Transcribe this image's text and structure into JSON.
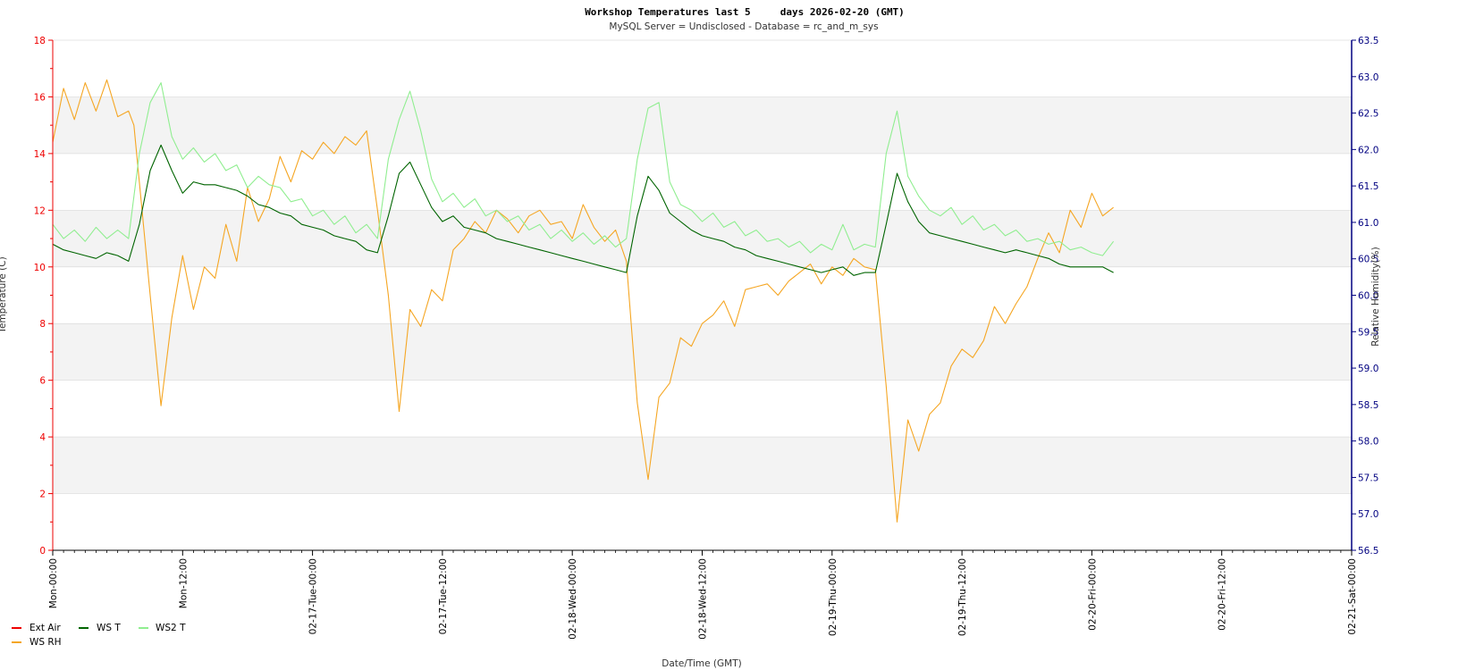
{
  "chart_data": {
    "type": "line",
    "title": "Workshop Temperatures last 5     days 2026-02-20 (GMT)",
    "subtitle": "MySQL Server = Undisclosed - Database = rc_and_m_sys",
    "xlabel": "Date/Time (GMT)",
    "ylabel_left": "Temperature (C)",
    "ylabel_right": "Relative Humidity(%)",
    "ylim_left": [
      0,
      18
    ],
    "ylim_right": [
      56.5,
      63.5
    ],
    "xlim_hours": [
      0,
      120
    ],
    "x_tick_hours": [
      0,
      12,
      24,
      36,
      48,
      60,
      72,
      84,
      96,
      108,
      120
    ],
    "x_tick_labels": [
      "Mon-00:00",
      "Mon-12:00",
      "02-17-Tue-00:00",
      "02-17-Tue-12:00",
      "02-18-Wed-00:00",
      "02-18-Wed-12:00",
      "02-19-Thu-00:00",
      "02-19-Thu-12:00",
      "02-20-Fri-00:00",
      "02-20-Fri-12:00",
      "02-21-Sat-00:00"
    ],
    "y_left_ticks": [
      0,
      2,
      4,
      6,
      8,
      10,
      12,
      14,
      16,
      18
    ],
    "y_right_ticks": [
      "56.5",
      "57.0",
      "57.5",
      "58.0",
      "58.5",
      "59.0",
      "59.5",
      "60.0",
      "60.5",
      "61.0",
      "61.5",
      "62.0",
      "62.5",
      "63.0",
      "63.5"
    ],
    "legend_position": "bottom-left",
    "colors": {
      "left_axis": "#ee0000",
      "right_axis": "#000080",
      "band": "#f3f3f3"
    },
    "series": [
      {
        "name": "Ext Air",
        "color": "#ee0000",
        "axis": "left",
        "x": [],
        "values": []
      },
      {
        "name": "WS RH",
        "color": "#f5a623",
        "axis": "left",
        "x": [
          0,
          1,
          2,
          3,
          4,
          5,
          6,
          7,
          7.5,
          9,
          10,
          11,
          12,
          13,
          14,
          15,
          16,
          17,
          18,
          19,
          20,
          21,
          22,
          23,
          24,
          25,
          26,
          27,
          28,
          29,
          30,
          31,
          32,
          33,
          34,
          35,
          36,
          37,
          38,
          39,
          40,
          41,
          42,
          43,
          44,
          45,
          46,
          47,
          48,
          49,
          50,
          51,
          52,
          53,
          54,
          55,
          56,
          57,
          58,
          59,
          60,
          61,
          62,
          63,
          64,
          65,
          66,
          67,
          68,
          69,
          70,
          71,
          72,
          73,
          74,
          75,
          76,
          77,
          78,
          79,
          80,
          81,
          82,
          83,
          84,
          85,
          86,
          87,
          88,
          89,
          90,
          91,
          92,
          93,
          94,
          95,
          96,
          97,
          98
        ],
        "values": [
          14.4,
          16.3,
          15.2,
          16.5,
          15.5,
          16.6,
          15.3,
          15.5,
          15.0,
          9.0,
          5.1,
          8.2,
          10.4,
          8.5,
          10.0,
          9.6,
          11.5,
          10.2,
          12.8,
          11.6,
          12.4,
          13.9,
          13.0,
          14.1,
          13.8,
          14.4,
          14.0,
          14.6,
          14.3,
          14.8,
          12.0,
          9.0,
          4.9,
          8.5,
          7.9,
          9.2,
          8.8,
          10.6,
          11.0,
          11.6,
          11.2,
          12.0,
          11.7,
          11.2,
          11.8,
          12.0,
          11.5,
          11.6,
          11.0,
          12.2,
          11.4,
          10.9,
          11.3,
          10.2,
          5.2,
          2.5,
          5.4,
          5.9,
          7.5,
          7.2,
          8.0,
          8.3,
          8.8,
          7.9,
          9.2,
          9.3,
          9.4,
          9.0,
          9.5,
          9.8,
          10.1,
          9.4,
          10.0,
          9.7,
          10.3,
          10.0,
          9.9,
          5.8,
          1.0,
          4.6,
          3.5,
          4.8,
          5.2,
          6.5,
          7.1,
          6.8,
          7.4,
          8.6,
          8.0,
          8.7,
          9.3,
          10.3,
          11.2,
          10.5,
          12.0,
          11.4,
          12.6,
          11.8,
          12.1
        ]
      },
      {
        "name": "WS T",
        "color": "#006400",
        "axis": "left",
        "x": [
          0,
          1,
          2,
          3,
          4,
          5,
          6,
          7,
          8,
          9,
          10,
          11,
          12,
          13,
          14,
          15,
          16,
          17,
          18,
          19,
          20,
          21,
          22,
          23,
          24,
          25,
          26,
          27,
          28,
          29,
          30,
          31,
          32,
          33,
          34,
          35,
          36,
          37,
          38,
          39,
          40,
          41,
          42,
          43,
          44,
          45,
          46,
          47,
          48,
          49,
          50,
          51,
          52,
          53,
          54,
          55,
          56,
          57,
          58,
          59,
          60,
          61,
          62,
          63,
          64,
          65,
          66,
          67,
          68,
          69,
          70,
          71,
          72,
          73,
          74,
          75,
          76,
          77,
          78,
          79,
          80,
          81,
          82,
          83,
          84,
          85,
          86,
          87,
          88,
          89,
          90,
          91,
          92,
          93,
          94,
          95,
          96,
          97,
          98
        ],
        "values": [
          10.8,
          10.6,
          10.5,
          10.4,
          10.3,
          10.5,
          10.4,
          10.2,
          11.5,
          13.4,
          14.3,
          13.4,
          12.6,
          13.0,
          12.9,
          12.9,
          12.8,
          12.7,
          12.5,
          12.2,
          12.1,
          11.9,
          11.8,
          11.5,
          11.4,
          11.3,
          11.1,
          11.0,
          10.9,
          10.6,
          10.5,
          11.8,
          13.3,
          13.7,
          12.9,
          12.1,
          11.6,
          11.8,
          11.4,
          11.3,
          11.2,
          11.0,
          10.9,
          10.8,
          10.7,
          10.6,
          10.5,
          10.4,
          10.3,
          10.2,
          10.1,
          10.0,
          9.9,
          9.8,
          11.8,
          13.2,
          12.7,
          11.9,
          11.6,
          11.3,
          11.1,
          11.0,
          10.9,
          10.7,
          10.6,
          10.4,
          10.3,
          10.2,
          10.1,
          10.0,
          9.9,
          9.8,
          9.9,
          10.0,
          9.7,
          9.8,
          9.8,
          11.5,
          13.3,
          12.3,
          11.6,
          11.2,
          11.1,
          11.0,
          10.9,
          10.8,
          10.7,
          10.6,
          10.5,
          10.6,
          10.5,
          10.4,
          10.3,
          10.1,
          10.0,
          10.0,
          10.0,
          10.0,
          9.8
        ]
      },
      {
        "name": "WS2 T",
        "color": "#90ee90",
        "axis": "left",
        "x": [
          0,
          1,
          2,
          3,
          4,
          5,
          6,
          7,
          8,
          9,
          10,
          11,
          12,
          13,
          14,
          15,
          16,
          17,
          18,
          19,
          20,
          21,
          22,
          23,
          24,
          25,
          26,
          27,
          28,
          29,
          30,
          31,
          32,
          33,
          34,
          35,
          36,
          37,
          38,
          39,
          40,
          41,
          42,
          43,
          44,
          45,
          46,
          47,
          48,
          49,
          50,
          51,
          52,
          53,
          54,
          55,
          56,
          57,
          58,
          59,
          60,
          61,
          62,
          63,
          64,
          65,
          66,
          67,
          68,
          69,
          70,
          71,
          72,
          73,
          74,
          75,
          76,
          77,
          78,
          79,
          80,
          81,
          82,
          83,
          84,
          85,
          86,
          87,
          88,
          89,
          90,
          91,
          92,
          93,
          94,
          95,
          96,
          97,
          98
        ],
        "values": [
          11.5,
          11.0,
          11.3,
          10.9,
          11.4,
          11.0,
          11.3,
          11.0,
          14.0,
          15.8,
          16.5,
          14.6,
          13.8,
          14.2,
          13.7,
          14.0,
          13.4,
          13.6,
          12.8,
          13.2,
          12.9,
          12.8,
          12.3,
          12.4,
          11.8,
          12.0,
          11.5,
          11.8,
          11.2,
          11.5,
          11.0,
          13.8,
          15.2,
          16.2,
          14.8,
          13.1,
          12.3,
          12.6,
          12.1,
          12.4,
          11.8,
          12.0,
          11.6,
          11.8,
          11.3,
          11.5,
          11.0,
          11.3,
          10.9,
          11.2,
          10.8,
          11.1,
          10.7,
          11.0,
          13.8,
          15.6,
          15.8,
          13.0,
          12.2,
          12.0,
          11.6,
          11.9,
          11.4,
          11.6,
          11.1,
          11.3,
          10.9,
          11.0,
          10.7,
          10.9,
          10.5,
          10.8,
          10.6,
          11.5,
          10.6,
          10.8,
          10.7,
          14.0,
          15.5,
          13.2,
          12.5,
          12.0,
          11.8,
          12.1,
          11.5,
          11.8,
          11.3,
          11.5,
          11.1,
          11.3,
          10.9,
          11.0,
          10.8,
          10.9,
          10.6,
          10.7,
          10.5,
          10.4,
          10.9
        ]
      }
    ]
  }
}
